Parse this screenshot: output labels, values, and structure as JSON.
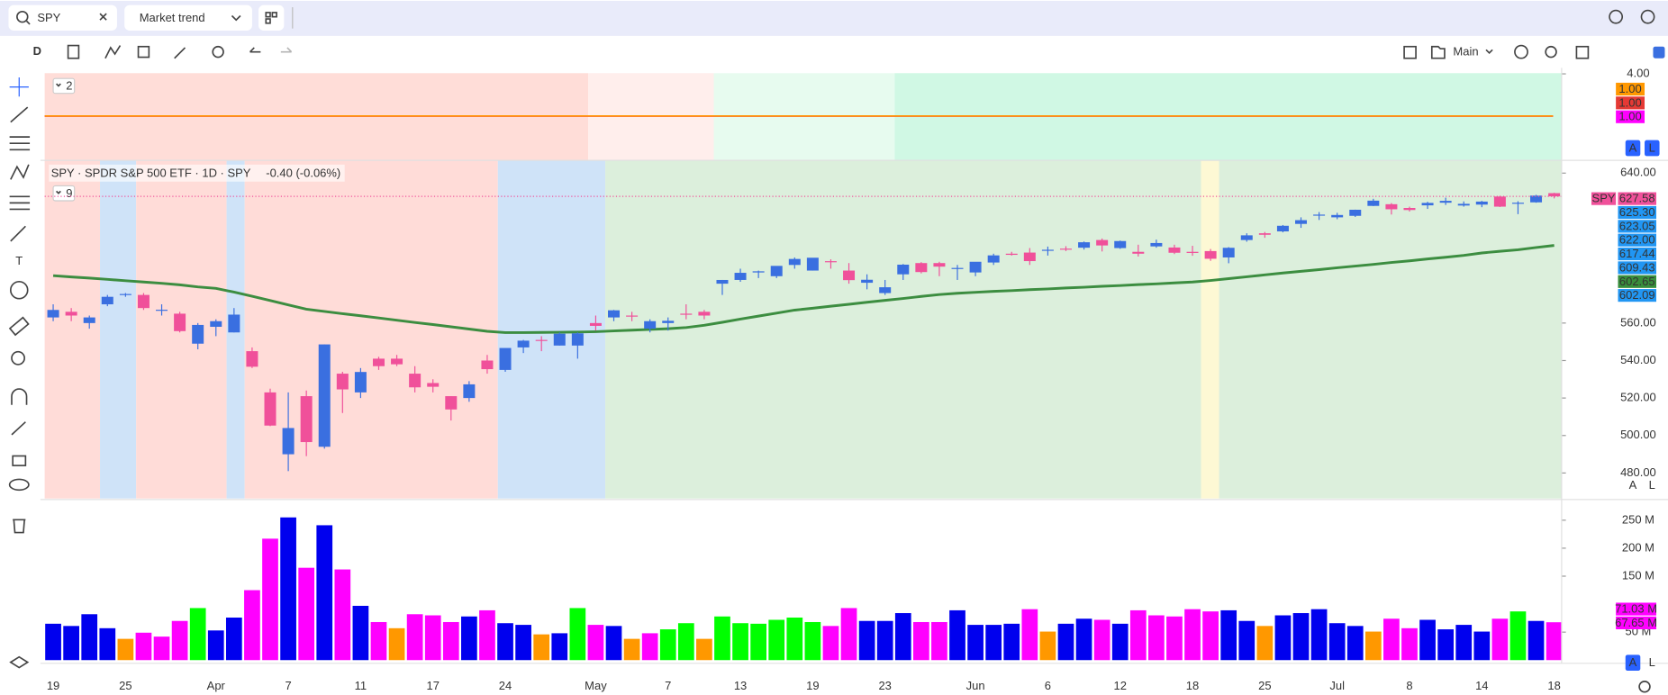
{
  "toolbar": {
    "symbol": "SPY",
    "layout": "Market trend",
    "interval": "D",
    "template": "Main"
  },
  "legend": {
    "title": "SPY · SPDR S&P 500 ETF · 1D · SPY",
    "change": "-0.40 (-0.06%)",
    "pane_counts": [
      2,
      9
    ]
  },
  "chart_data": [
    {
      "type": "level",
      "ylim": [
        -2.15,
        4.05
      ],
      "yticks": [
        {
          "value": 4,
          "label": "4.00"
        }
      ],
      "levels": [
        1,
        1,
        1
      ],
      "value_labels": [
        "1.00",
        "1.00",
        "1.00"
      ],
      "colors": [
        "#e53935",
        "#ff00ff",
        "#ff9800"
      ]
    },
    {
      "type": "candlestick",
      "categories": [
        "19",
        null,
        null,
        null,
        "25",
        null,
        null,
        null,
        null,
        "Apr",
        null,
        null,
        null,
        "7",
        null,
        null,
        null,
        "11",
        null,
        null,
        null,
        "17",
        null,
        null,
        null,
        "24",
        null,
        null,
        null,
        null,
        "May",
        null,
        null,
        null,
        "7",
        null,
        null,
        null,
        "13",
        null,
        null,
        null,
        "19",
        null,
        null,
        null,
        "23",
        null,
        null,
        null,
        null,
        "Jun",
        null,
        null,
        null,
        "6",
        null,
        null,
        null,
        "12",
        null,
        null,
        null,
        "18",
        null,
        null,
        null,
        "25",
        null,
        null,
        null,
        "Jul",
        null,
        null,
        null,
        "8",
        null,
        null,
        null,
        "14",
        null,
        null,
        null,
        "18"
      ],
      "open": [
        563,
        566,
        560,
        570,
        575,
        575,
        567,
        565,
        549,
        558,
        555,
        545,
        523,
        490,
        521,
        494,
        533,
        523,
        541,
        541,
        533,
        528,
        521,
        520,
        540,
        535,
        547,
        551,
        548,
        548,
        560,
        563,
        564,
        557,
        560,
        565,
        566,
        581,
        583,
        587,
        585,
        591,
        588,
        593,
        588,
        581.5,
        576,
        586,
        592,
        592,
        589,
        587,
        592.3,
        597,
        597.6,
        598.6,
        599.7,
        600.2,
        604.3,
        600,
        598,
        600.9,
        600.3,
        598,
        598.4,
        595,
        604.3,
        607.9,
        608.9,
        612.9,
        617.4,
        616.4,
        617.2,
        622.5,
        623.4,
        621.4,
        622.8,
        624.2,
        622.7,
        623.2,
        627.5,
        623.7,
        624.4,
        629.3
      ],
      "high": [
        570,
        568,
        564,
        575,
        576,
        576,
        570,
        566,
        560,
        562,
        568,
        547,
        525,
        523,
        524,
        548.6,
        534,
        536,
        542,
        543,
        537,
        530,
        521,
        529,
        543,
        546.6,
        551,
        553,
        555,
        555,
        564,
        567,
        566,
        562,
        563,
        570,
        567,
        583,
        589,
        588,
        590,
        595,
        594.5,
        594,
        592,
        586,
        583,
        591.5,
        592.5,
        592.7,
        591,
        592,
        597,
        598,
        600,
        600.8,
        601,
        603.5,
        605.1,
        604,
        601.8,
        604.5,
        601.8,
        601.2,
        599.5,
        600.5,
        607.9,
        608.6,
        612.3,
        616.4,
        619.2,
        618.8,
        620.5,
        626.3,
        624,
        622.1,
        624.7,
        626.9,
        624.9,
        625.2,
        627.9,
        625,
        628.4,
        629.5
      ],
      "low": [
        561,
        561,
        557,
        569,
        574,
        567,
        564,
        555,
        546,
        553,
        555,
        536,
        505,
        481,
        489,
        493,
        512,
        520,
        535,
        537,
        523,
        523,
        508,
        518,
        533,
        534,
        544,
        545,
        548,
        541,
        556,
        561,
        561,
        555,
        556,
        562,
        562,
        575,
        582,
        584,
        584,
        589,
        588,
        589,
        581,
        578,
        575,
        583,
        586.5,
        585,
        583,
        585,
        591,
        596,
        591,
        596,
        598.4,
        599.2,
        598.2,
        599.6,
        595.5,
        600.2,
        596.8,
        595.9,
        593.2,
        591.9,
        603.4,
        605.5,
        608.4,
        610.8,
        615,
        615.4,
        616.6,
        622.4,
        617.9,
        619.5,
        620.9,
        623,
        622.1,
        621.8,
        621.9,
        618.1,
        624.2,
        626.5
      ],
      "close": [
        567,
        564,
        563,
        574,
        575.5,
        568,
        567.1,
        555.7,
        559,
        561,
        564.5,
        536.7,
        505.3,
        504,
        496.5,
        548.6,
        524.6,
        533.9,
        537,
        538,
        525.7,
        526,
        513.9,
        527.3,
        535.4,
        546.7,
        550.6,
        550.8,
        554.3,
        554.5,
        558.5,
        566.8,
        563.5,
        561,
        561.2,
        565,
        564,
        582.99,
        586.8,
        587.6,
        590.5,
        594.2,
        594.85,
        592.9,
        582.9,
        583.1,
        579.1,
        591.15,
        587.2,
        590.1,
        589.4,
        592.7,
        596.1,
        596.4,
        593.05,
        599.1,
        599.7,
        603.1,
        601.4,
        603.75,
        597,
        602.7,
        597.5,
        597.4,
        594.3,
        600.15,
        606.8,
        607.1,
        611.9,
        614.9,
        617.85,
        617.65,
        620.45,
        625.3,
        620.7,
        620.3,
        624.1,
        625.2,
        623.6,
        624.8,
        622.1,
        624.2,
        628,
        627.6
      ],
      "up_color": "#3a6fe0",
      "down_color": "#f0509a",
      "series": [
        {
          "color": "#3c8d40",
          "values": [
            585.3,
            584.6,
            584,
            583.3,
            582.6,
            581.9,
            581.2,
            580.4,
            579.3,
            578.5,
            576.5,
            574.3,
            572,
            569.7,
            567.4,
            566.2,
            565,
            563.9,
            562.7,
            561.5,
            560.3,
            559.2,
            558,
            556.8,
            555.6,
            554.9,
            554.9,
            555,
            555.1,
            555.2,
            555.4,
            555.8,
            556.2,
            556.6,
            557,
            557.6,
            558.8,
            560.4,
            562.1,
            563.7,
            565.3,
            566.9,
            567.9,
            569,
            570,
            571.1,
            572.1,
            573.1,
            574.2,
            575.2,
            575.9,
            576.4,
            576.9,
            577.3,
            577.8,
            578.2,
            578.7,
            579.1,
            579.6,
            580,
            580.5,
            580.9,
            581.4,
            581.9,
            582.7,
            583.7,
            584.7,
            585.7,
            586.7,
            587.6,
            588.5,
            589.5,
            590.4,
            591.3,
            592.3,
            593.2,
            594.2,
            595.1,
            596.1,
            597.4,
            598.3,
            599.1,
            600.3,
            601.4
          ]
        }
      ],
      "ylim": [
        466.4,
        646.8
      ],
      "yticks": [
        {
          "value": 480,
          "label": "480.00"
        },
        {
          "value": 500,
          "label": "500.00"
        },
        {
          "value": 520,
          "label": "520.00"
        },
        {
          "value": 540,
          "label": "540.00"
        },
        {
          "value": 560,
          "label": "560.00"
        },
        {
          "value": 640,
          "label": "640.00"
        }
      ],
      "symbol_tag": "SPY",
      "last_labels": [
        "627.58",
        "625.30",
        "623.05",
        "622.00",
        "617.44",
        "609.43",
        "602.65",
        "602.09"
      ],
      "last_colors": [
        "#f0509a",
        "#2196f3",
        "#2196f3",
        "#2196f3",
        "#2196f3",
        "#2196f3",
        "#388e3c",
        "#2196f3"
      ]
    },
    {
      "type": "bar",
      "values": [
        65,
        61,
        82,
        57,
        38,
        49,
        42,
        70,
        93,
        53,
        76,
        125,
        217,
        255,
        165,
        241,
        162,
        97,
        68,
        57,
        82,
        80,
        68,
        78,
        89,
        66,
        63,
        46,
        48,
        93,
        63,
        61,
        38,
        48,
        55,
        66,
        38,
        78,
        66,
        65,
        72,
        76,
        68,
        61,
        93,
        70,
        70,
        84,
        68,
        68,
        89,
        63,
        63,
        65,
        91,
        51,
        65,
        74,
        72,
        65,
        89,
        80,
        78,
        91,
        87,
        89,
        70,
        61,
        80,
        84,
        91,
        66,
        61,
        51,
        74,
        57,
        72,
        55,
        63,
        51,
        74,
        87,
        70,
        67.65
      ],
      "colors": [
        "#0000ee",
        "#0000ee",
        "#0000ee",
        "#0000ee",
        "#ff9800",
        "#ff00ff",
        "#ff00ff",
        "#ff00ff",
        "#00ff00",
        "#0000ee",
        "#0000ee",
        "#ff00ff",
        "#ff00ff",
        "#0000ee",
        "#ff00ff",
        "#0000ee",
        "#ff00ff",
        "#0000ee",
        "#ff00ff",
        "#ff9800",
        "#ff00ff",
        "#ff00ff",
        "#ff00ff",
        "#0000ee",
        "#ff00ff",
        "#0000ee",
        "#0000ee",
        "#ff9800",
        "#0000ee",
        "#00ff00",
        "#ff00ff",
        "#0000ee",
        "#ff9800",
        "#ff00ff",
        "#00ff00",
        "#00ff00",
        "#ff9800",
        "#00ff00",
        "#00ff00",
        "#00ff00",
        "#00ff00",
        "#00ff00",
        "#00ff00",
        "#ff00ff",
        "#ff00ff",
        "#0000ee",
        "#0000ee",
        "#0000ee",
        "#ff00ff",
        "#ff00ff",
        "#0000ee",
        "#0000ee",
        "#0000ee",
        "#0000ee",
        "#ff00ff",
        "#ff9800",
        "#0000ee",
        "#0000ee",
        "#ff00ff",
        "#0000ee",
        "#ff00ff",
        "#ff00ff",
        "#ff00ff",
        "#ff00ff",
        "#ff00ff",
        "#0000ee",
        "#0000ee",
        "#ff9800",
        "#0000ee",
        "#0000ee",
        "#0000ee",
        "#0000ee",
        "#0000ee",
        "#ff9800",
        "#ff00ff",
        "#ff00ff",
        "#0000ee",
        "#0000ee",
        "#0000ee",
        "#0000ee",
        "#ff00ff",
        "#00ff00",
        "#0000ee",
        "#ff00ff"
      ],
      "ylim": [
        0,
        285
      ],
      "yticks": [
        {
          "value": 50,
          "label": "50 M"
        },
        {
          "value": 150,
          "label": "150 M"
        },
        {
          "value": 200,
          "label": "200 M"
        },
        {
          "value": 250,
          "label": "250 M"
        }
      ],
      "badges": [
        "71.03 M",
        "67.65 M"
      ]
    }
  ]
}
